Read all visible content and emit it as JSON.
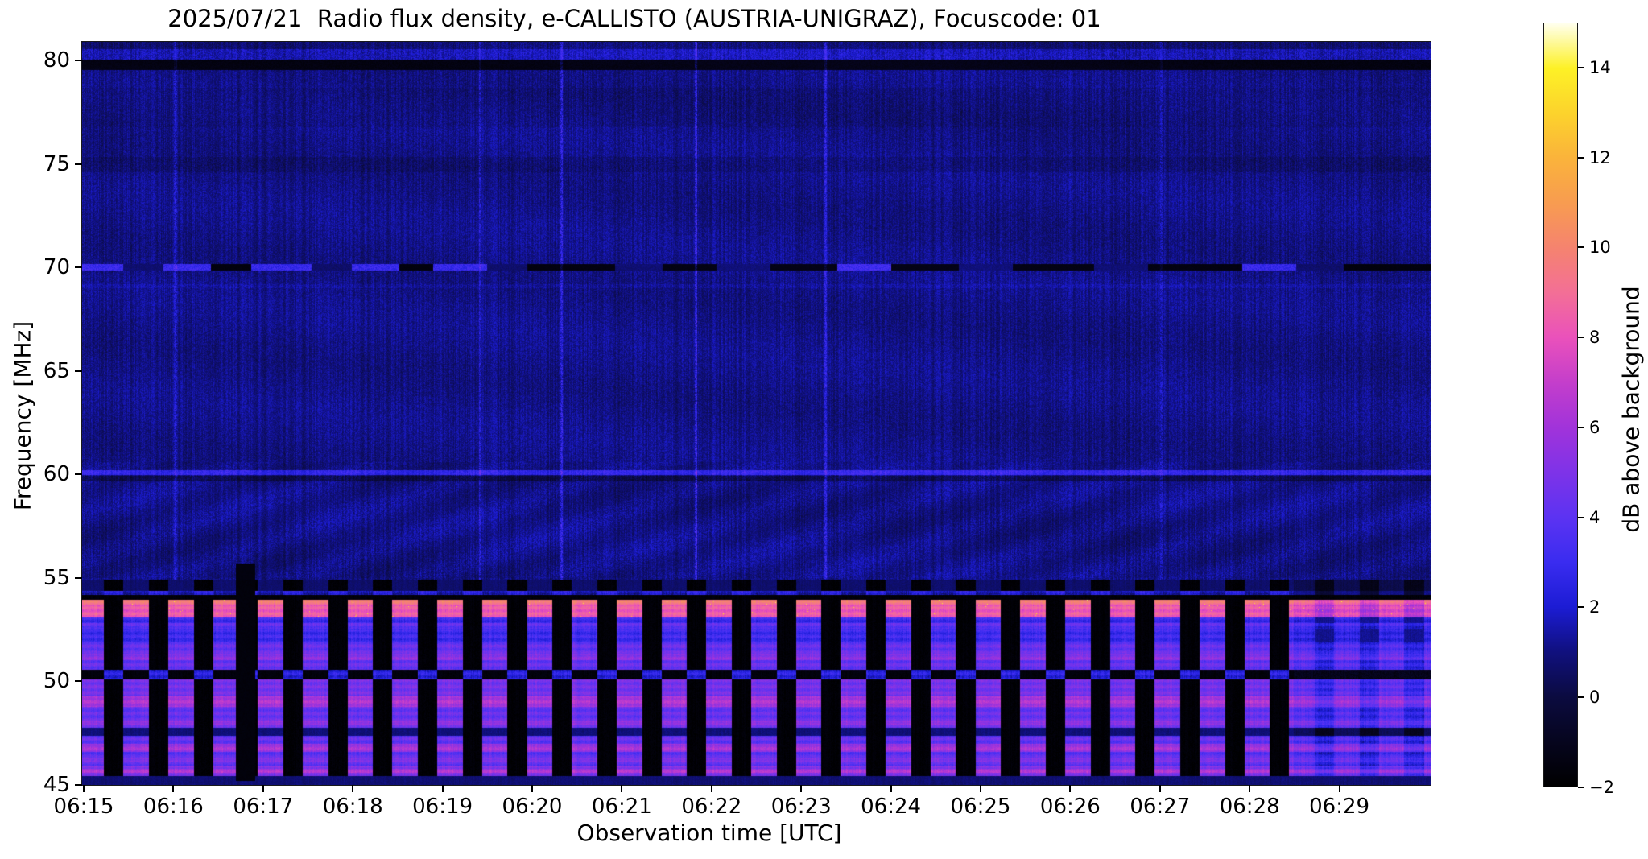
{
  "title": "2025/07/21  Radio flux density, e-CALLISTO (AUSTRIA-UNIGRAZ), Focuscode: 01",
  "axes": {
    "xlabel": "Observation time [UTC]",
    "ylabel": "Frequency [MHz]",
    "x_ticks": [
      "06:15",
      "06:16",
      "06:17",
      "06:18",
      "06:19",
      "06:20",
      "06:21",
      "06:22",
      "06:23",
      "06:24",
      "06:25",
      "06:26",
      "06:27",
      "06:28",
      "06:29"
    ],
    "y_ticks": [
      80,
      75,
      70,
      65,
      60,
      55,
      50,
      45
    ]
  },
  "colorbar": {
    "label": "dB above background",
    "ticks": [
      14,
      12,
      10,
      8,
      6,
      4,
      2,
      0,
      -2
    ],
    "range": [
      -2,
      15
    ]
  },
  "colormap": {
    "name": "gnuplot2-like",
    "stops": [
      [
        -2,
        "#000000"
      ],
      [
        -1,
        "#06051e"
      ],
      [
        0,
        "#0b0b40"
      ],
      [
        1,
        "#10107e"
      ],
      [
        2,
        "#1c1cd4"
      ],
      [
        3,
        "#3a2cf0"
      ],
      [
        4,
        "#5c33f2"
      ],
      [
        5,
        "#7e33e8"
      ],
      [
        6,
        "#a133da"
      ],
      [
        7,
        "#c43ecb"
      ],
      [
        8,
        "#ea51bb"
      ],
      [
        9,
        "#f36f96"
      ],
      [
        10,
        "#f5836f"
      ],
      [
        11,
        "#f89c50"
      ],
      [
        12,
        "#fab33b"
      ],
      [
        13,
        "#fcd32c"
      ],
      [
        14,
        "#fdf126"
      ],
      [
        15,
        "#ffffee"
      ]
    ]
  },
  "chart_data": {
    "type": "heatmap",
    "title": "2025/07/21  Radio flux density, e-CALLISTO (AUSTRIA-UNIGRAZ), Focuscode: 01",
    "xlabel": "Observation time [UTC]",
    "ylabel": "Frequency [MHz]",
    "x_range_utc": [
      "06:15",
      "06:30"
    ],
    "y_range_mhz": [
      45.0,
      80.9
    ],
    "value_label": "dB above background",
    "value_range_db": [
      -2,
      15
    ],
    "background_level_db": 1.05,
    "upper_features": {
      "bright_speckle_row_mhz": [
        80.08,
        80.55
      ],
      "black_band_mhz": [
        79.55,
        80.08
      ],
      "dim_band_top_mhz": [
        80.55,
        80.9
      ],
      "faint_dark_band_mhz": [
        74.6,
        75.35
      ],
      "faint_dark_band2_mhz": [
        76.8,
        78.7
      ],
      "faint_bright_line_mhz": [
        69.02,
        69.22
      ],
      "bright_line_60_mhz": [
        59.98,
        60.22
      ],
      "dark_line_60_mhz": [
        59.7,
        59.95
      ],
      "fringe_zone_mhz": [
        55.0,
        60.6
      ]
    },
    "line70_mhz": [
      69.88,
      70.18
    ],
    "line70_segments": [
      [
        0.0,
        0.03,
        "bright"
      ],
      [
        0.03,
        0.06,
        "dim"
      ],
      [
        0.06,
        0.095,
        "bright"
      ],
      [
        0.095,
        0.125,
        "black"
      ],
      [
        0.125,
        0.17,
        "bright"
      ],
      [
        0.17,
        0.2,
        "dim"
      ],
      [
        0.2,
        0.235,
        "bright"
      ],
      [
        0.235,
        0.26,
        "black"
      ],
      [
        0.26,
        0.3,
        "bright"
      ],
      [
        0.3,
        0.33,
        "dim"
      ],
      [
        0.33,
        0.395,
        "black"
      ],
      [
        0.395,
        0.43,
        "dim"
      ],
      [
        0.43,
        0.47,
        "black"
      ],
      [
        0.47,
        0.51,
        "dim"
      ],
      [
        0.51,
        0.56,
        "black"
      ],
      [
        0.56,
        0.6,
        "bright"
      ],
      [
        0.6,
        0.65,
        "black"
      ],
      [
        0.65,
        0.69,
        "dim"
      ],
      [
        0.69,
        0.75,
        "black"
      ],
      [
        0.75,
        0.79,
        "dim"
      ],
      [
        0.79,
        0.86,
        "black"
      ],
      [
        0.86,
        0.9,
        "bright"
      ],
      [
        0.9,
        0.935,
        "dim"
      ],
      [
        0.935,
        1.0,
        "black"
      ]
    ],
    "calibration_cycle": {
      "period_s": 30,
      "on_s": 17,
      "off_s": 13,
      "freq_range_mhz": [
        45.45,
        54.95
      ],
      "first_off_start_frac": 0.0159,
      "switching_stops_frac": 0.898
    },
    "band_profile": [
      {
        "f1": 54.95,
        "f0": 54.4,
        "on": 0.7,
        "off": -1.8
      },
      {
        "f1": 54.4,
        "f0": 54.18,
        "on": 1.6,
        "off": 2.7
      },
      {
        "f1": 54.18,
        "f0": 53.98,
        "on": -1.7,
        "off": -1.7
      },
      {
        "f1": 53.98,
        "f0": 53.1,
        "on": 8.3,
        "off": -1.8,
        "hot_top": true
      },
      {
        "f1": 53.1,
        "f0": 51.9,
        "on": 3.1,
        "off": -1.8,
        "sub": [
          52.85,
          52.55,
          0.9
        ]
      },
      {
        "f1": 51.9,
        "f0": 50.6,
        "on": 4.3,
        "off": -1.8,
        "sub": [
          51.35,
          51.05,
          1.0
        ]
      },
      {
        "f1": 50.6,
        "f0": 50.1,
        "on": -1.6,
        "off": 2.4
      },
      {
        "f1": 50.1,
        "f0": 49.3,
        "on": 4.7,
        "off": -1.8
      },
      {
        "f1": 49.3,
        "f0": 48.8,
        "on": 6.3,
        "off": -1.8
      },
      {
        "f1": 48.8,
        "f0": 47.8,
        "on": 4.3,
        "off": -1.8,
        "sub": [
          48.15,
          47.95,
          1.5
        ]
      },
      {
        "f1": 47.8,
        "f0": 47.4,
        "on": 0.9,
        "off": -1.8
      },
      {
        "f1": 47.4,
        "f0": 47.0,
        "on": 4.2,
        "off": -1.8
      },
      {
        "f1": 47.0,
        "f0": 46.6,
        "on": 6.0,
        "off": -1.8
      },
      {
        "f1": 46.6,
        "f0": 45.95,
        "on": 4.0,
        "off": -1.8,
        "sub": [
          46.35,
          46.15,
          1.3
        ]
      },
      {
        "f1": 45.95,
        "f0": 45.45,
        "on": 5.2,
        "off": -1.8,
        "sub": [
          45.8,
          45.62,
          1.0
        ]
      },
      {
        "f1": 45.45,
        "f0": 45.0,
        "on": 0.8,
        "off": 0.8
      }
    ],
    "vertical_streaks": [
      {
        "x": 0.069,
        "amp": 0.9
      },
      {
        "x": 0.295,
        "amp": 1.1
      },
      {
        "x": 0.355,
        "amp": 1.5
      },
      {
        "x": 0.455,
        "amp": 1.6
      },
      {
        "x": 0.551,
        "amp": 1.2
      },
      {
        "x": 0.8,
        "amp": 0.8
      }
    ],
    "tall_black_columns": [
      {
        "x0": 0.114,
        "x1": 0.128,
        "f_max": 55.7
      }
    ]
  }
}
